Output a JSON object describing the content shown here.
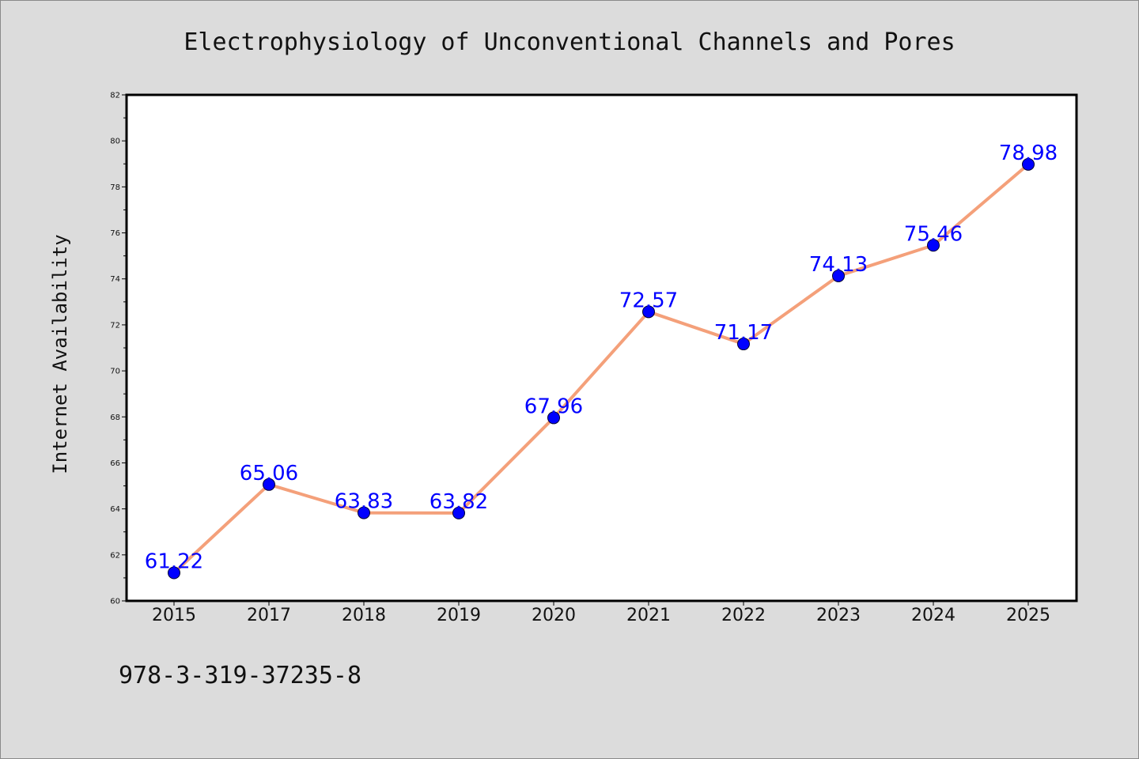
{
  "chart_data": {
    "type": "line",
    "title": "Electrophysiology of Unconventional Channels and Pores",
    "xlabel": "",
    "ylabel": "Internet Availability",
    "categories": [
      "2015",
      "2017",
      "2018",
      "2019",
      "2020",
      "2021",
      "2022",
      "2023",
      "2024",
      "2025"
    ],
    "series": [
      {
        "values": [
          61.22,
          65.06,
          63.83,
          63.82,
          67.96,
          72.57,
          71.17,
          74.13,
          75.46,
          78.98
        ],
        "data_labels": [
          "61.22",
          "65.06",
          "63.83",
          "63.82",
          "67.96",
          "72.57",
          "71.17",
          "74.13",
          "75.46",
          "78.98"
        ]
      }
    ],
    "ylim": [
      60,
      82
    ],
    "yticks": [
      "60",
      "62",
      "64",
      "66",
      "68",
      "70",
      "72",
      "74",
      "76",
      "78",
      "80",
      "82"
    ],
    "grid": false,
    "colors": {
      "line": "#f4a07a",
      "marker": "#0000ff",
      "label": "#0000ff",
      "background": "#dcdcdc",
      "plot_background": "#ffffff"
    }
  },
  "footer": {
    "isbn": "978-3-319-37235-8"
  }
}
